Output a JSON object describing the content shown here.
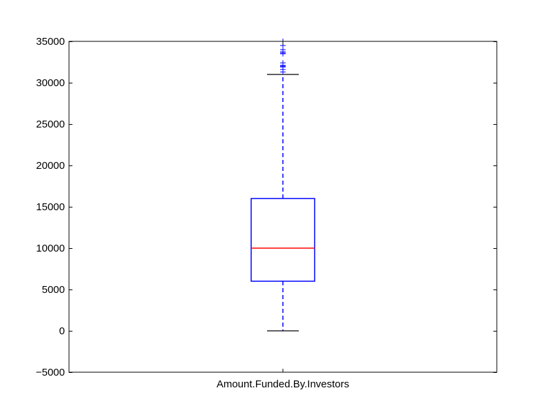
{
  "chart_data": {
    "type": "box",
    "title": "",
    "xlabel": "",
    "ylabel": "",
    "categories": [
      "Amount.Funded.By.Investors"
    ],
    "ylim": [
      -5000,
      35000
    ],
    "yticks": [
      -5000,
      0,
      5000,
      10000,
      15000,
      20000,
      25000,
      30000,
      35000
    ],
    "ytick_labels": [
      "−5000",
      "0",
      "5000",
      "10000",
      "15000",
      "20000",
      "25000",
      "30000",
      "35000"
    ],
    "grid": false,
    "boxes": [
      {
        "category": "Amount.Funded.By.Investors",
        "whisker_low": 0,
        "q1": 6000,
        "median": 10000,
        "q3": 16000,
        "whisker_high": 31000,
        "outliers": [
          31300,
          31600,
          31900,
          32000,
          32100,
          32400,
          33500,
          33600,
          33750,
          34000,
          34500,
          35000
        ]
      }
    ],
    "colors": {
      "box": "#0000ff",
      "median": "#ff0000",
      "whisker": "#0000ff",
      "cap": "#000000",
      "outlier": "#0000ff",
      "axes": "#000000"
    }
  }
}
